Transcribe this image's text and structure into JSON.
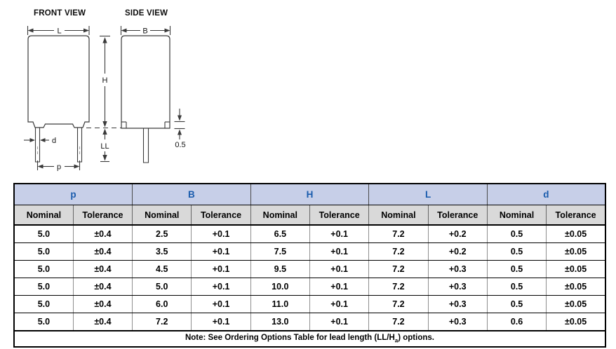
{
  "diagram": {
    "front_view_title": "FRONT VIEW",
    "side_view_title": "SIDE VIEW",
    "labels": {
      "L": "L",
      "B": "B",
      "H": "H",
      "LL": "LL",
      "d": "d",
      "p": "p",
      "standoff": "0.5"
    }
  },
  "table": {
    "groups": [
      {
        "label": "p"
      },
      {
        "label": "B"
      },
      {
        "label": "H"
      },
      {
        "label": "L"
      },
      {
        "label": "d"
      }
    ],
    "nominal_label": "Nominal",
    "tolerance_label": "Tolerance",
    "rows": [
      [
        "5.0",
        "±0.4",
        "2.5",
        "+0.1",
        "6.5",
        "+0.1",
        "7.2",
        "+0.2",
        "0.5",
        "±0.05"
      ],
      [
        "5.0",
        "±0.4",
        "3.5",
        "+0.1",
        "7.5",
        "+0.1",
        "7.2",
        "+0.2",
        "0.5",
        "±0.05"
      ],
      [
        "5.0",
        "±0.4",
        "4.5",
        "+0.1",
        "9.5",
        "+0.1",
        "7.2",
        "+0.3",
        "0.5",
        "±0.05"
      ],
      [
        "5.0",
        "±0.4",
        "5.0",
        "+0.1",
        "10.0",
        "+0.1",
        "7.2",
        "+0.3",
        "0.5",
        "±0.05"
      ],
      [
        "5.0",
        "±0.4",
        "6.0",
        "+0.1",
        "11.0",
        "+0.1",
        "7.2",
        "+0.3",
        "0.5",
        "±0.05"
      ],
      [
        "5.0",
        "±0.4",
        "7.2",
        "+0.1",
        "13.0",
        "+0.1",
        "7.2",
        "+0.3",
        "0.6",
        "±0.05"
      ]
    ],
    "note": {
      "pre": "Note: See Ordering Options Table for lead length (LL/H",
      "sub": "a",
      "post": ") options."
    }
  },
  "colors": {
    "accent-blue": "#1a5cad",
    "group-header-bg": "#c7cfe8",
    "subheader-bg": "#d9d9d9",
    "line": "#3a3a3a"
  }
}
